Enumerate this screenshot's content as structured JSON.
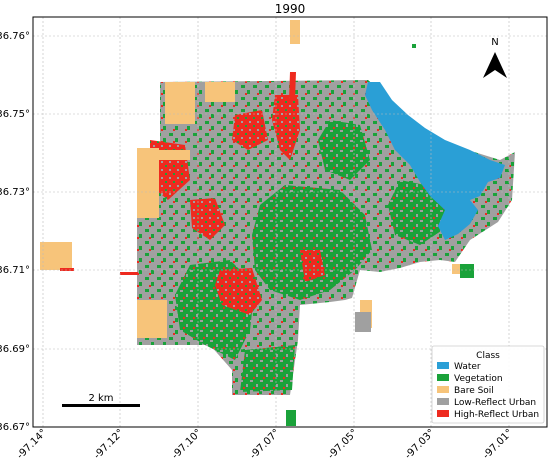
{
  "figure": {
    "title": "1990",
    "north_label": "N",
    "scale_bar_label": "2 km"
  },
  "axes": {
    "lat_ticks": [
      "36.76°",
      "36.75°",
      "36.73°",
      "36.71°",
      "36.69°",
      "36.67°"
    ],
    "lon_ticks": [
      "-97.14°",
      "-97.12°",
      "-97.10°",
      "-97.07°",
      "-97.05°",
      "-97.03°",
      "-97.01°"
    ]
  },
  "legend": {
    "title": "Class",
    "items": [
      {
        "label": "Water",
        "color": "#2a9fd6"
      },
      {
        "label": "Vegetation",
        "color": "#1aa23a"
      },
      {
        "label": "Bare Soil",
        "color": "#f7c47a"
      },
      {
        "label": "Low-Reflect Urban",
        "color": "#a0a0a0"
      },
      {
        "label": "High-Reflect Urban",
        "color": "#ee2a1f"
      }
    ]
  }
}
